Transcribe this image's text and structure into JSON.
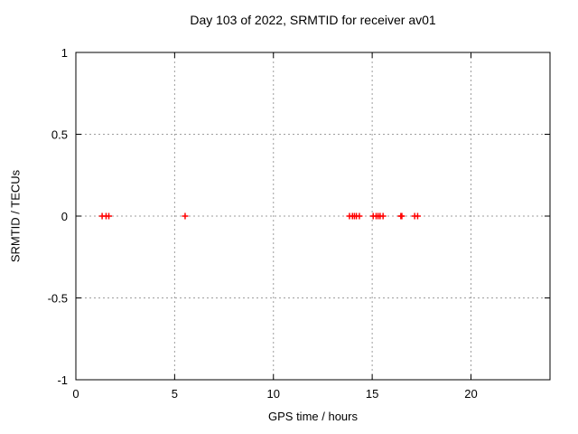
{
  "figure": {
    "background": "#ffffff",
    "border_color": "#000000",
    "grid_color": "#9e9e9e",
    "text_color": "#000000"
  },
  "chart_data": {
    "type": "scatter",
    "title": "Day 103 of 2022, SRMTID for receiver av01",
    "xlabel": "GPS time / hours",
    "ylabel": "SRMTID / TECUs",
    "xlim": [
      0,
      24
    ],
    "ylim": [
      -1,
      1
    ],
    "xticks": [
      0,
      5,
      10,
      15,
      20
    ],
    "xtick_labels": [
      "0",
      "5",
      "10",
      "15",
      "20"
    ],
    "yticks": [
      -1,
      -0.5,
      0,
      0.5,
      1
    ],
    "ytick_labels": [
      "-1",
      "-0.5",
      "0",
      "0.5",
      "1"
    ],
    "grid": true,
    "legend": "none",
    "marker": "plus",
    "marker_size": 7,
    "marker_color": "#ff0000",
    "series": [
      {
        "name": "SRMTID",
        "x": [
          1.33,
          1.53,
          1.67,
          5.53,
          13.85,
          14.0,
          14.1,
          14.2,
          14.35,
          15.05,
          15.2,
          15.3,
          15.4,
          15.55,
          16.45,
          16.5,
          17.15,
          17.3
        ],
        "y": [
          0,
          0,
          0,
          0,
          0,
          0,
          0,
          0,
          0,
          0,
          0,
          0,
          0,
          0,
          0,
          0,
          0,
          0
        ]
      }
    ]
  }
}
